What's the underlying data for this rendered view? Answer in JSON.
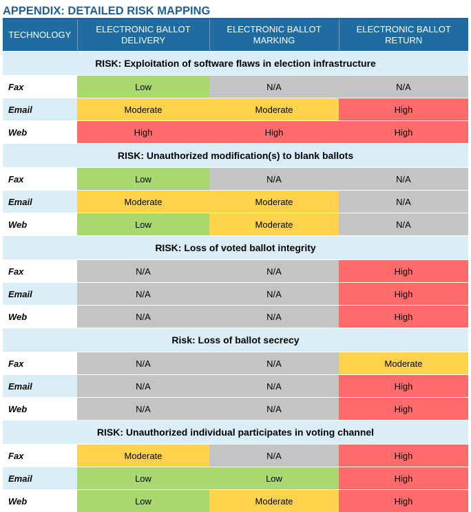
{
  "title": "APPENDIX: DETAILED RISK MAPPING",
  "columns": [
    "TECHNOLOGY",
    "ELECTRONIC BALLOT DELIVERY",
    "ELECTRONIC BALLOT MARKING",
    "ELECTRONIC BALLOT RETURN"
  ],
  "sections": [
    {
      "heading": "RISK: Exploitation of software flaws in election infrastructure",
      "rows": [
        {
          "tech": "Fax",
          "values": [
            "Low",
            "N/A",
            "N/A"
          ]
        },
        {
          "tech": "Email",
          "values": [
            "Moderate",
            "Moderate",
            "High"
          ]
        },
        {
          "tech": "Web",
          "values": [
            "High",
            "High",
            "High"
          ]
        }
      ]
    },
    {
      "heading": "RISK: Unauthorized modification(s) to blank ballots",
      "rows": [
        {
          "tech": "Fax",
          "values": [
            "Low",
            "N/A",
            "N/A"
          ]
        },
        {
          "tech": "Email",
          "values": [
            "Moderate",
            "Moderate",
            "N/A"
          ]
        },
        {
          "tech": "Web",
          "values": [
            "Low",
            "Moderate",
            "N/A"
          ]
        }
      ]
    },
    {
      "heading": "RISK: Loss of voted ballot integrity",
      "rows": [
        {
          "tech": "Fax",
          "values": [
            "N/A",
            "N/A",
            "High"
          ]
        },
        {
          "tech": "Email",
          "values": [
            "N/A",
            "N/A",
            "High"
          ]
        },
        {
          "tech": "Web",
          "values": [
            "N/A",
            "N/A",
            "High"
          ]
        }
      ]
    },
    {
      "heading": "Risk: Loss of ballot secrecy",
      "rows": [
        {
          "tech": "Fax",
          "values": [
            "N/A",
            "N/A",
            "Moderate"
          ]
        },
        {
          "tech": "Email",
          "values": [
            "N/A",
            "N/A",
            "High"
          ]
        },
        {
          "tech": "Web",
          "values": [
            "N/A",
            "N/A",
            "High"
          ]
        }
      ]
    },
    {
      "heading": "RISK: Unauthorized individual participates in voting channel",
      "rows": [
        {
          "tech": "Fax",
          "values": [
            "Moderate",
            "N/A",
            "High"
          ]
        },
        {
          "tech": "Email",
          "values": [
            "Low",
            "Low",
            "High"
          ]
        },
        {
          "tech": "Web",
          "values": [
            "Low",
            "Moderate",
            "High"
          ]
        }
      ]
    }
  ],
  "level_colors": {
    "Low": "#a9d870",
    "Moderate": "#fdd34d",
    "High": "#ff6a6a",
    "N/A": "#c4c4c4"
  }
}
